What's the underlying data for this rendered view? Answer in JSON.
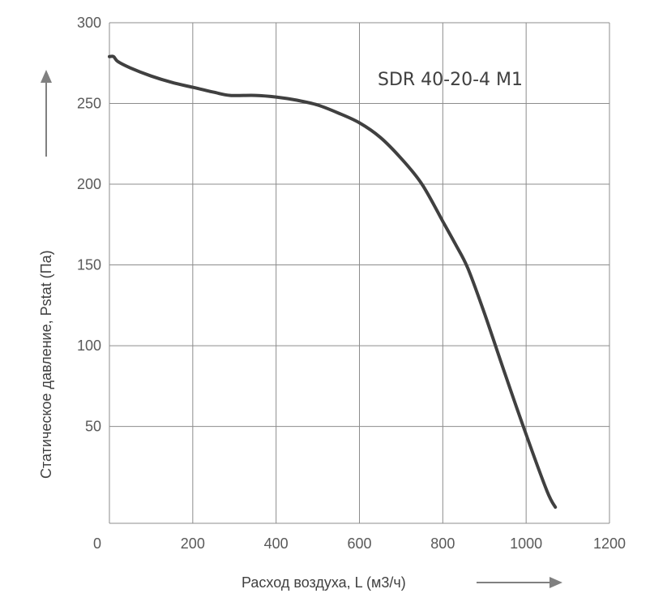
{
  "chart_data": {
    "type": "line",
    "series": [
      {
        "name": "SDR 40-20-4 M1",
        "x": [
          0,
          10,
          20,
          50,
          100,
          150,
          200,
          250,
          290,
          350,
          400,
          450,
          500,
          550,
          600,
          650,
          700,
          750,
          800,
          830,
          860,
          900,
          950,
          1000,
          1050,
          1070
        ],
        "y": [
          279,
          279,
          276,
          272,
          267,
          263,
          260,
          257,
          255,
          255,
          254,
          252,
          249,
          244,
          238,
          229,
          216,
          200,
          177,
          163,
          148,
          120,
          82,
          45,
          10,
          0
        ]
      }
    ],
    "xlabel": "Расход воздуха, L (м3/ч)",
    "ylabel": "Статическое давление, Pstat (Па)",
    "x_ticks": [
      "0",
      "200",
      "400",
      "600",
      "800",
      "1000",
      "1200"
    ],
    "y_ticks": [
      "50",
      "100",
      "150",
      "200",
      "250",
      "300"
    ],
    "xlim": [
      0,
      1200
    ],
    "ylim": [
      -10,
      300
    ],
    "grid": true,
    "colors": {
      "line": "#404040",
      "grid": "#8c8c8c",
      "axis_arrow": "#808080"
    }
  }
}
